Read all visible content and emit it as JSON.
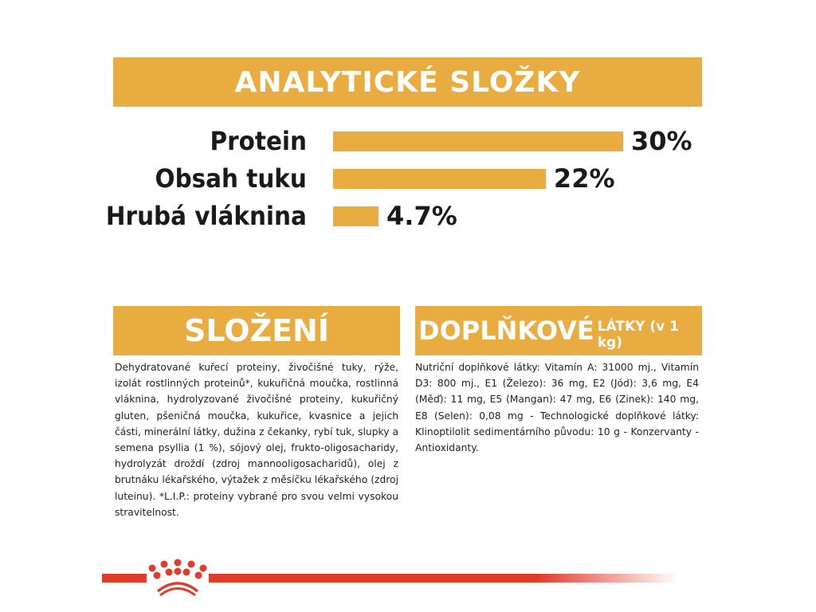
{
  "analytics": {
    "title": "ANALYTICKÉ SLOŽKY",
    "items": [
      {
        "label": "Protein",
        "value_text": "30%",
        "value": 30
      },
      {
        "label": "Obsah tuku",
        "value_text": "22%",
        "value": 22
      },
      {
        "label": "Hrubá vláknina",
        "value_text": "4.7%",
        "value": 4.7
      }
    ]
  },
  "composition": {
    "title": "SLOŽENÍ",
    "text": "Dehydratované kuřecí proteiny, živočišné tuky, rýže, izolát rostlinných proteinů*, kukuřičná moučka, rostlinná vláknina, hydrolyzované živočišné proteiny, kukuřičný gluten, pšeničná moučka, kukuřice, kvasnice a jejich části, minerální látky, dužina z čekanky, rybí tuk, slupky a semena psyllia (1 %), sójový olej, frukto-oligosacharidy, hydrolyzát droždí (zdroj mannooligosacharidů), olej z brutnáku lékařského, výtažek z měsíčku lékařského (zdroj luteinu). *L.I.P.: proteiny vybrané pro svou velmi vysokou stravitelnost."
  },
  "additives": {
    "title_main": "DOPLŇKOVÉ",
    "title_small": "LÁTKY (v 1 kg)",
    "text": "Nutriční doplňkové látky: Vitamín A: 31000 mj., Vitamín D3: 800 mj., E1 (Železo): 36 mg, E2 (Jód): 3,6 mg, E4 (Měď): 11 mg, E5 (Mangan): 47 mg, E6 (Zinek): 140 mg, E8 (Selen): 0,08 mg - Technologické doplňkové látky: Klinoptilolit sedimentárního původu: 10 g - Konzervanty - Antioxidanty."
  },
  "colors": {
    "accent": "#E9AC40",
    "brand_red": "#E03C2C"
  },
  "logo": {
    "icon": "royal-canin-crown-icon"
  }
}
